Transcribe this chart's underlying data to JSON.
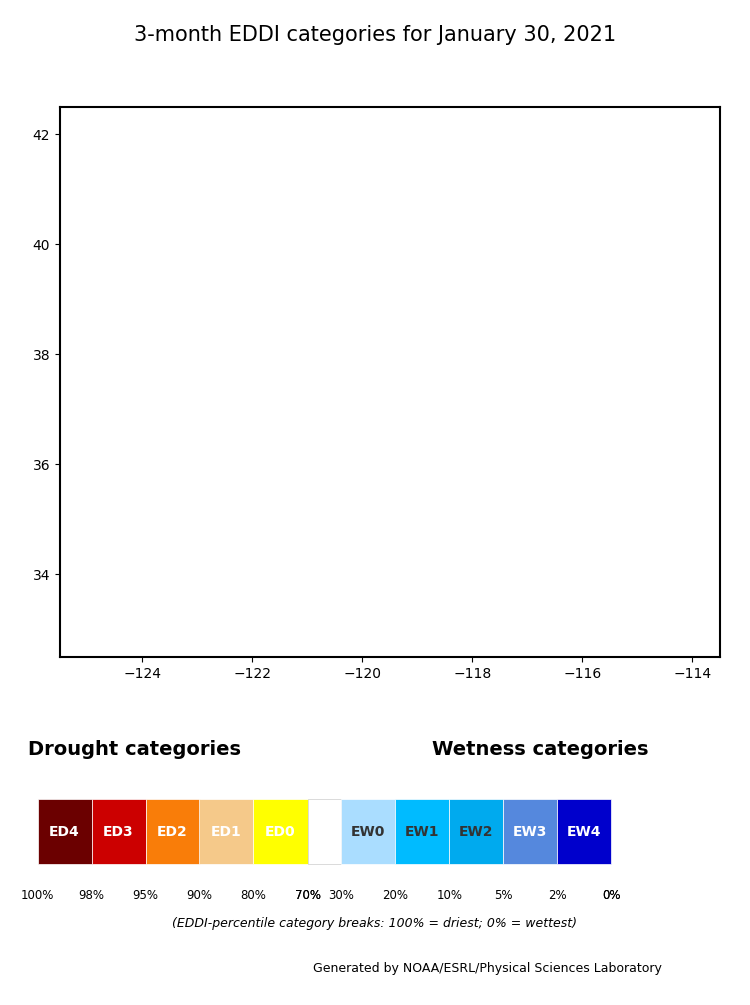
{
  "title": "3-month EDDI categories for January 30, 2021",
  "title_fontsize": 15,
  "extent": [
    -125.5,
    -113.5,
    32.5,
    42.5
  ],
  "figsize": [
    7.5,
    10.05
  ],
  "dpi": 100,
  "legend_title_drought": "Drought categories",
  "legend_title_wetness": "Wetness categories",
  "categories": [
    "ED4",
    "ED3",
    "ED2",
    "ED1",
    "ED0",
    "EW0",
    "EW1",
    "EW2",
    "EW3",
    "EW4"
  ],
  "colors": {
    "ED4": "#6b0000",
    "ED3": "#cc0000",
    "ED2": "#f97d09",
    "ED1": "#f5c98a",
    "ED0": "#ffff00",
    "white": "#ffffff",
    "EW0": "#aaddff",
    "EW1": "#00bbff",
    "EW2": "#00aaee",
    "EW3": "#5588dd",
    "EW4": "#0000cc"
  },
  "percentages": [
    "100%",
    "98%",
    "95%",
    "90%",
    "80%",
    "70%",
    "30%",
    "20%",
    "10%",
    "5%",
    "2%",
    "0%"
  ],
  "footnote": "(EDDI-percentile category breaks: 100% = driest; 0% = wettest)",
  "credit": "Generated by NOAA/ESRL/Physical Sciences Laboratory",
  "xticks": [
    -124,
    -122,
    -120,
    -118,
    -116
  ],
  "yticks": [
    34,
    36,
    38,
    40,
    42
  ],
  "map_background": "#ffffff",
  "border_color": "#555555",
  "state_border_color": "#555555",
  "county_border_color": "#aaaaaa"
}
